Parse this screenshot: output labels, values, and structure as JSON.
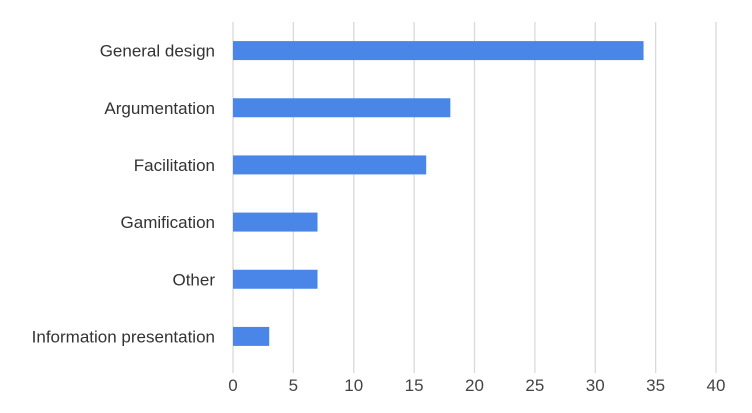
{
  "chart_data": {
    "type": "bar",
    "orientation": "horizontal",
    "categories": [
      "General design",
      "Argumentation",
      "Facilitation",
      "Gamification",
      "Other",
      "Information presentation"
    ],
    "values": [
      34,
      18,
      16,
      7,
      7,
      3
    ],
    "xlim": [
      0,
      40
    ],
    "xticks": [
      0,
      5,
      10,
      15,
      20,
      25,
      30,
      35,
      40
    ],
    "grid": true,
    "legend": "none",
    "bar_color": "#4a86e8",
    "title": "",
    "xlabel": "",
    "ylabel": ""
  }
}
